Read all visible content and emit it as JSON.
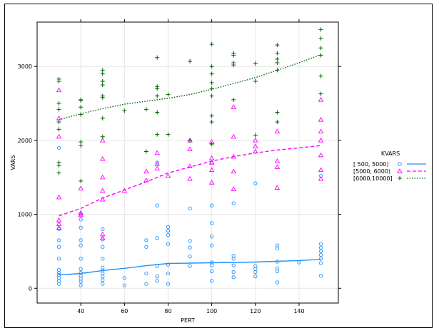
{
  "chart_data": {
    "type": "scatter",
    "title": "",
    "xlabel": "PERT",
    "ylabel": "VARS",
    "xlim": [
      20,
      158
    ],
    "ylim": [
      -200,
      3600
    ],
    "x_ticks": [
      40,
      60,
      80,
      100,
      120,
      140
    ],
    "y_ticks": [
      0,
      1000,
      2000,
      3000
    ],
    "grid": true,
    "legend": {
      "title": "KVARS",
      "placement": "right",
      "entries": [
        "[ 500, 5000)",
        "[5000, 6000)",
        "[6000,10000]"
      ]
    },
    "series": [
      {
        "name": "[ 500, 5000)",
        "color": "#1e90ff",
        "marker": "circle",
        "line_style": "solid",
        "points": [
          [
            30,
            60
          ],
          [
            30,
            100
          ],
          [
            30,
            140
          ],
          [
            30,
            180
          ],
          [
            30,
            210
          ],
          [
            30,
            250
          ],
          [
            30,
            400
          ],
          [
            30,
            560
          ],
          [
            30,
            650
          ],
          [
            30,
            800
          ],
          [
            30,
            1900
          ],
          [
            40,
            40
          ],
          [
            40,
            90
          ],
          [
            40,
            130
          ],
          [
            40,
            170
          ],
          [
            40,
            210
          ],
          [
            40,
            260
          ],
          [
            40,
            400
          ],
          [
            40,
            580
          ],
          [
            40,
            650
          ],
          [
            40,
            820
          ],
          [
            40,
            930
          ],
          [
            40,
            1000
          ],
          [
            50,
            60
          ],
          [
            50,
            110
          ],
          [
            50,
            160
          ],
          [
            50,
            200
          ],
          [
            50,
            240
          ],
          [
            50,
            280
          ],
          [
            50,
            400
          ],
          [
            50,
            560
          ],
          [
            50,
            660
          ],
          [
            50,
            800
          ],
          [
            60,
            40
          ],
          [
            60,
            140
          ],
          [
            70,
            60
          ],
          [
            70,
            200
          ],
          [
            70,
            560
          ],
          [
            70,
            650
          ],
          [
            75,
            100
          ],
          [
            75,
            160
          ],
          [
            75,
            300
          ],
          [
            75,
            680
          ],
          [
            75,
            1120
          ],
          [
            75,
            1700
          ],
          [
            80,
            60
          ],
          [
            80,
            200
          ],
          [
            80,
            320
          ],
          [
            80,
            600
          ],
          [
            80,
            720
          ],
          [
            80,
            780
          ],
          [
            80,
            830
          ],
          [
            90,
            300
          ],
          [
            90,
            430
          ],
          [
            90,
            550
          ],
          [
            90,
            640
          ],
          [
            90,
            1080
          ],
          [
            100,
            100
          ],
          [
            100,
            230
          ],
          [
            100,
            310
          ],
          [
            100,
            350
          ],
          [
            100,
            580
          ],
          [
            100,
            700
          ],
          [
            100,
            880
          ],
          [
            100,
            1120
          ],
          [
            100,
            1700
          ],
          [
            110,
            150
          ],
          [
            110,
            220
          ],
          [
            110,
            310
          ],
          [
            110,
            400
          ],
          [
            110,
            440
          ],
          [
            110,
            1150
          ],
          [
            120,
            160
          ],
          [
            120,
            220
          ],
          [
            120,
            260
          ],
          [
            120,
            300
          ],
          [
            120,
            1420
          ],
          [
            130,
            80
          ],
          [
            130,
            230
          ],
          [
            130,
            270
          ],
          [
            130,
            360
          ],
          [
            130,
            540
          ],
          [
            130,
            580
          ],
          [
            140,
            350
          ],
          [
            150,
            170
          ],
          [
            150,
            340
          ],
          [
            150,
            400
          ],
          [
            150,
            450
          ],
          [
            150,
            500
          ],
          [
            150,
            550
          ],
          [
            150,
            600
          ],
          [
            150,
            1520
          ]
        ],
        "trend": [
          [
            30,
            180
          ],
          [
            40,
            200
          ],
          [
            50,
            240
          ],
          [
            60,
            270
          ],
          [
            70,
            305
          ],
          [
            80,
            335
          ],
          [
            90,
            340
          ],
          [
            100,
            345
          ],
          [
            110,
            350
          ],
          [
            120,
            355
          ],
          [
            130,
            365
          ],
          [
            140,
            375
          ],
          [
            150,
            390
          ]
        ]
      },
      {
        "name": "[5000, 6000)",
        "color": "#ff00ff",
        "marker": "triangle",
        "line_style": "dashed",
        "points": [
          [
            30,
            820
          ],
          [
            30,
            870
          ],
          [
            30,
            920
          ],
          [
            30,
            1230
          ],
          [
            30,
            2050
          ],
          [
            30,
            2300
          ],
          [
            30,
            2680
          ],
          [
            40,
            990
          ],
          [
            40,
            1020
          ],
          [
            40,
            1350
          ],
          [
            50,
            680
          ],
          [
            50,
            730
          ],
          [
            50,
            1200
          ],
          [
            50,
            1320
          ],
          [
            50,
            1500
          ],
          [
            50,
            1750
          ],
          [
            50,
            2000
          ],
          [
            60,
            1320
          ],
          [
            70,
            1460
          ],
          [
            70,
            1580
          ],
          [
            75,
            1620
          ],
          [
            75,
            1680
          ],
          [
            75,
            1830
          ],
          [
            80,
            1520
          ],
          [
            90,
            1480
          ],
          [
            90,
            1650
          ],
          [
            90,
            1880
          ],
          [
            90,
            2000
          ],
          [
            100,
            1430
          ],
          [
            100,
            1600
          ],
          [
            100,
            1700
          ],
          [
            100,
            1760
          ],
          [
            100,
            1980
          ],
          [
            110,
            1340
          ],
          [
            110,
            1580
          ],
          [
            110,
            1780
          ],
          [
            110,
            2050
          ],
          [
            110,
            2450
          ],
          [
            120,
            1850
          ],
          [
            120,
            1920
          ],
          [
            120,
            2000
          ],
          [
            130,
            1360
          ],
          [
            130,
            1640
          ],
          [
            130,
            1720
          ],
          [
            130,
            2120
          ],
          [
            150,
            1480
          ],
          [
            150,
            1600
          ],
          [
            150,
            1800
          ],
          [
            150,
            2000
          ],
          [
            150,
            2120
          ],
          [
            150,
            2280
          ],
          [
            150,
            2550
          ]
        ],
        "trend": [
          [
            30,
            980
          ],
          [
            40,
            1080
          ],
          [
            50,
            1220
          ],
          [
            60,
            1330
          ],
          [
            70,
            1440
          ],
          [
            80,
            1560
          ],
          [
            90,
            1640
          ],
          [
            100,
            1720
          ],
          [
            110,
            1780
          ],
          [
            120,
            1830
          ],
          [
            130,
            1870
          ],
          [
            140,
            1900
          ],
          [
            150,
            1930
          ]
        ]
      },
      {
        "name": "[6000,10000]",
        "color": "#006400",
        "marker": "plus",
        "line_style": "dotted",
        "points": [
          [
            30,
            1560
          ],
          [
            30,
            1660
          ],
          [
            30,
            1700
          ],
          [
            30,
            2150
          ],
          [
            30,
            2250
          ],
          [
            30,
            2420
          ],
          [
            30,
            2500
          ],
          [
            30,
            2800
          ],
          [
            30,
            2830
          ],
          [
            40,
            1450
          ],
          [
            40,
            1930
          ],
          [
            40,
            1980
          ],
          [
            40,
            2350
          ],
          [
            40,
            2450
          ],
          [
            40,
            2540
          ],
          [
            40,
            2550
          ],
          [
            50,
            2050
          ],
          [
            50,
            2300
          ],
          [
            50,
            2580
          ],
          [
            50,
            2600
          ],
          [
            50,
            2750
          ],
          [
            50,
            2800
          ],
          [
            50,
            2900
          ],
          [
            50,
            2950
          ],
          [
            60,
            2400
          ],
          [
            70,
            1850
          ],
          [
            70,
            2420
          ],
          [
            75,
            2080
          ],
          [
            75,
            2380
          ],
          [
            75,
            2600
          ],
          [
            75,
            2700
          ],
          [
            75,
            2730
          ],
          [
            75,
            3120
          ],
          [
            80,
            2080
          ],
          [
            80,
            2620
          ],
          [
            90,
            2000
          ],
          [
            90,
            3070
          ],
          [
            100,
            1950
          ],
          [
            100,
            2250
          ],
          [
            100,
            2330
          ],
          [
            100,
            2600
          ],
          [
            100,
            2700
          ],
          [
            100,
            2780
          ],
          [
            100,
            2900
          ],
          [
            100,
            3000
          ],
          [
            100,
            3300
          ],
          [
            110,
            2550
          ],
          [
            110,
            3020
          ],
          [
            110,
            3050
          ],
          [
            110,
            3150
          ],
          [
            110,
            3180
          ],
          [
            120,
            2070
          ],
          [
            120,
            2800
          ],
          [
            120,
            3040
          ],
          [
            130,
            2250
          ],
          [
            130,
            2380
          ],
          [
            130,
            2950
          ],
          [
            130,
            3050
          ],
          [
            130,
            3100
          ],
          [
            130,
            3180
          ],
          [
            130,
            3290
          ],
          [
            150,
            2630
          ],
          [
            150,
            2870
          ],
          [
            150,
            3150
          ],
          [
            150,
            3250
          ],
          [
            150,
            3380
          ],
          [
            150,
            3500
          ]
        ],
        "trend": [
          [
            30,
            2280
          ],
          [
            40,
            2360
          ],
          [
            50,
            2430
          ],
          [
            60,
            2490
          ],
          [
            70,
            2530
          ],
          [
            80,
            2570
          ],
          [
            90,
            2620
          ],
          [
            100,
            2690
          ],
          [
            110,
            2770
          ],
          [
            120,
            2850
          ],
          [
            130,
            2950
          ],
          [
            140,
            3050
          ],
          [
            150,
            3160
          ]
        ]
      }
    ]
  }
}
